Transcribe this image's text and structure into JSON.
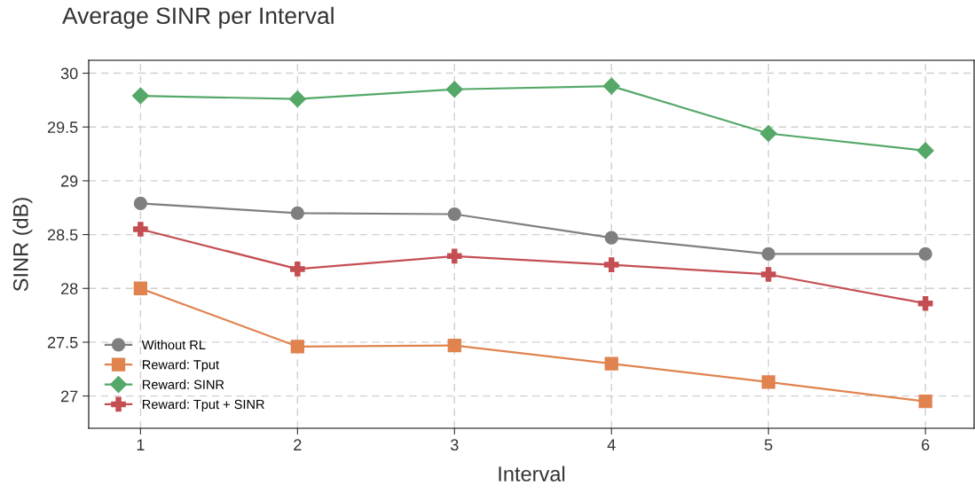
{
  "chart_data": {
    "type": "line",
    "title": "Average SINR per Interval",
    "xlabel": "Interval",
    "ylabel": "SINR (dB)",
    "x": [
      1,
      2,
      3,
      4,
      5,
      6
    ],
    "series": [
      {
        "name": "Without RL",
        "color": "#7f7f7f",
        "marker": "circle",
        "values": [
          28.79,
          28.7,
          28.69,
          28.47,
          28.32,
          28.32
        ]
      },
      {
        "name": "Reward: Tput",
        "color": "#e0834f",
        "marker": "square",
        "values": [
          28.0,
          27.46,
          27.47,
          27.3,
          27.13,
          26.95
        ]
      },
      {
        "name": "Reward: SINR",
        "color": "#55a868",
        "marker": "diamond",
        "values": [
          29.79,
          29.76,
          29.85,
          29.88,
          29.44,
          29.28
        ]
      },
      {
        "name": "Reward: Tput + SINR",
        "color": "#c44e52",
        "marker": "cross",
        "values": [
          28.55,
          28.18,
          28.3,
          28.22,
          28.13,
          27.86
        ]
      }
    ],
    "xlim": [
      0.67,
      6.31
    ],
    "ylim": [
      26.7,
      30.12
    ],
    "xticks": [
      1,
      2,
      3,
      4,
      5,
      6
    ],
    "yticks": [
      {
        "value": 27,
        "label": "27"
      },
      {
        "value": 27.5,
        "label": "27.5"
      },
      {
        "value": 28,
        "label": "28"
      },
      {
        "value": 28.5,
        "label": "28.5"
      },
      {
        "value": 29,
        "label": "29"
      },
      {
        "value": 29.5,
        "label": "29.5"
      },
      {
        "value": 30,
        "label": "30"
      }
    ],
    "grid": true,
    "legend": "bottom left",
    "line_style": "solid"
  }
}
